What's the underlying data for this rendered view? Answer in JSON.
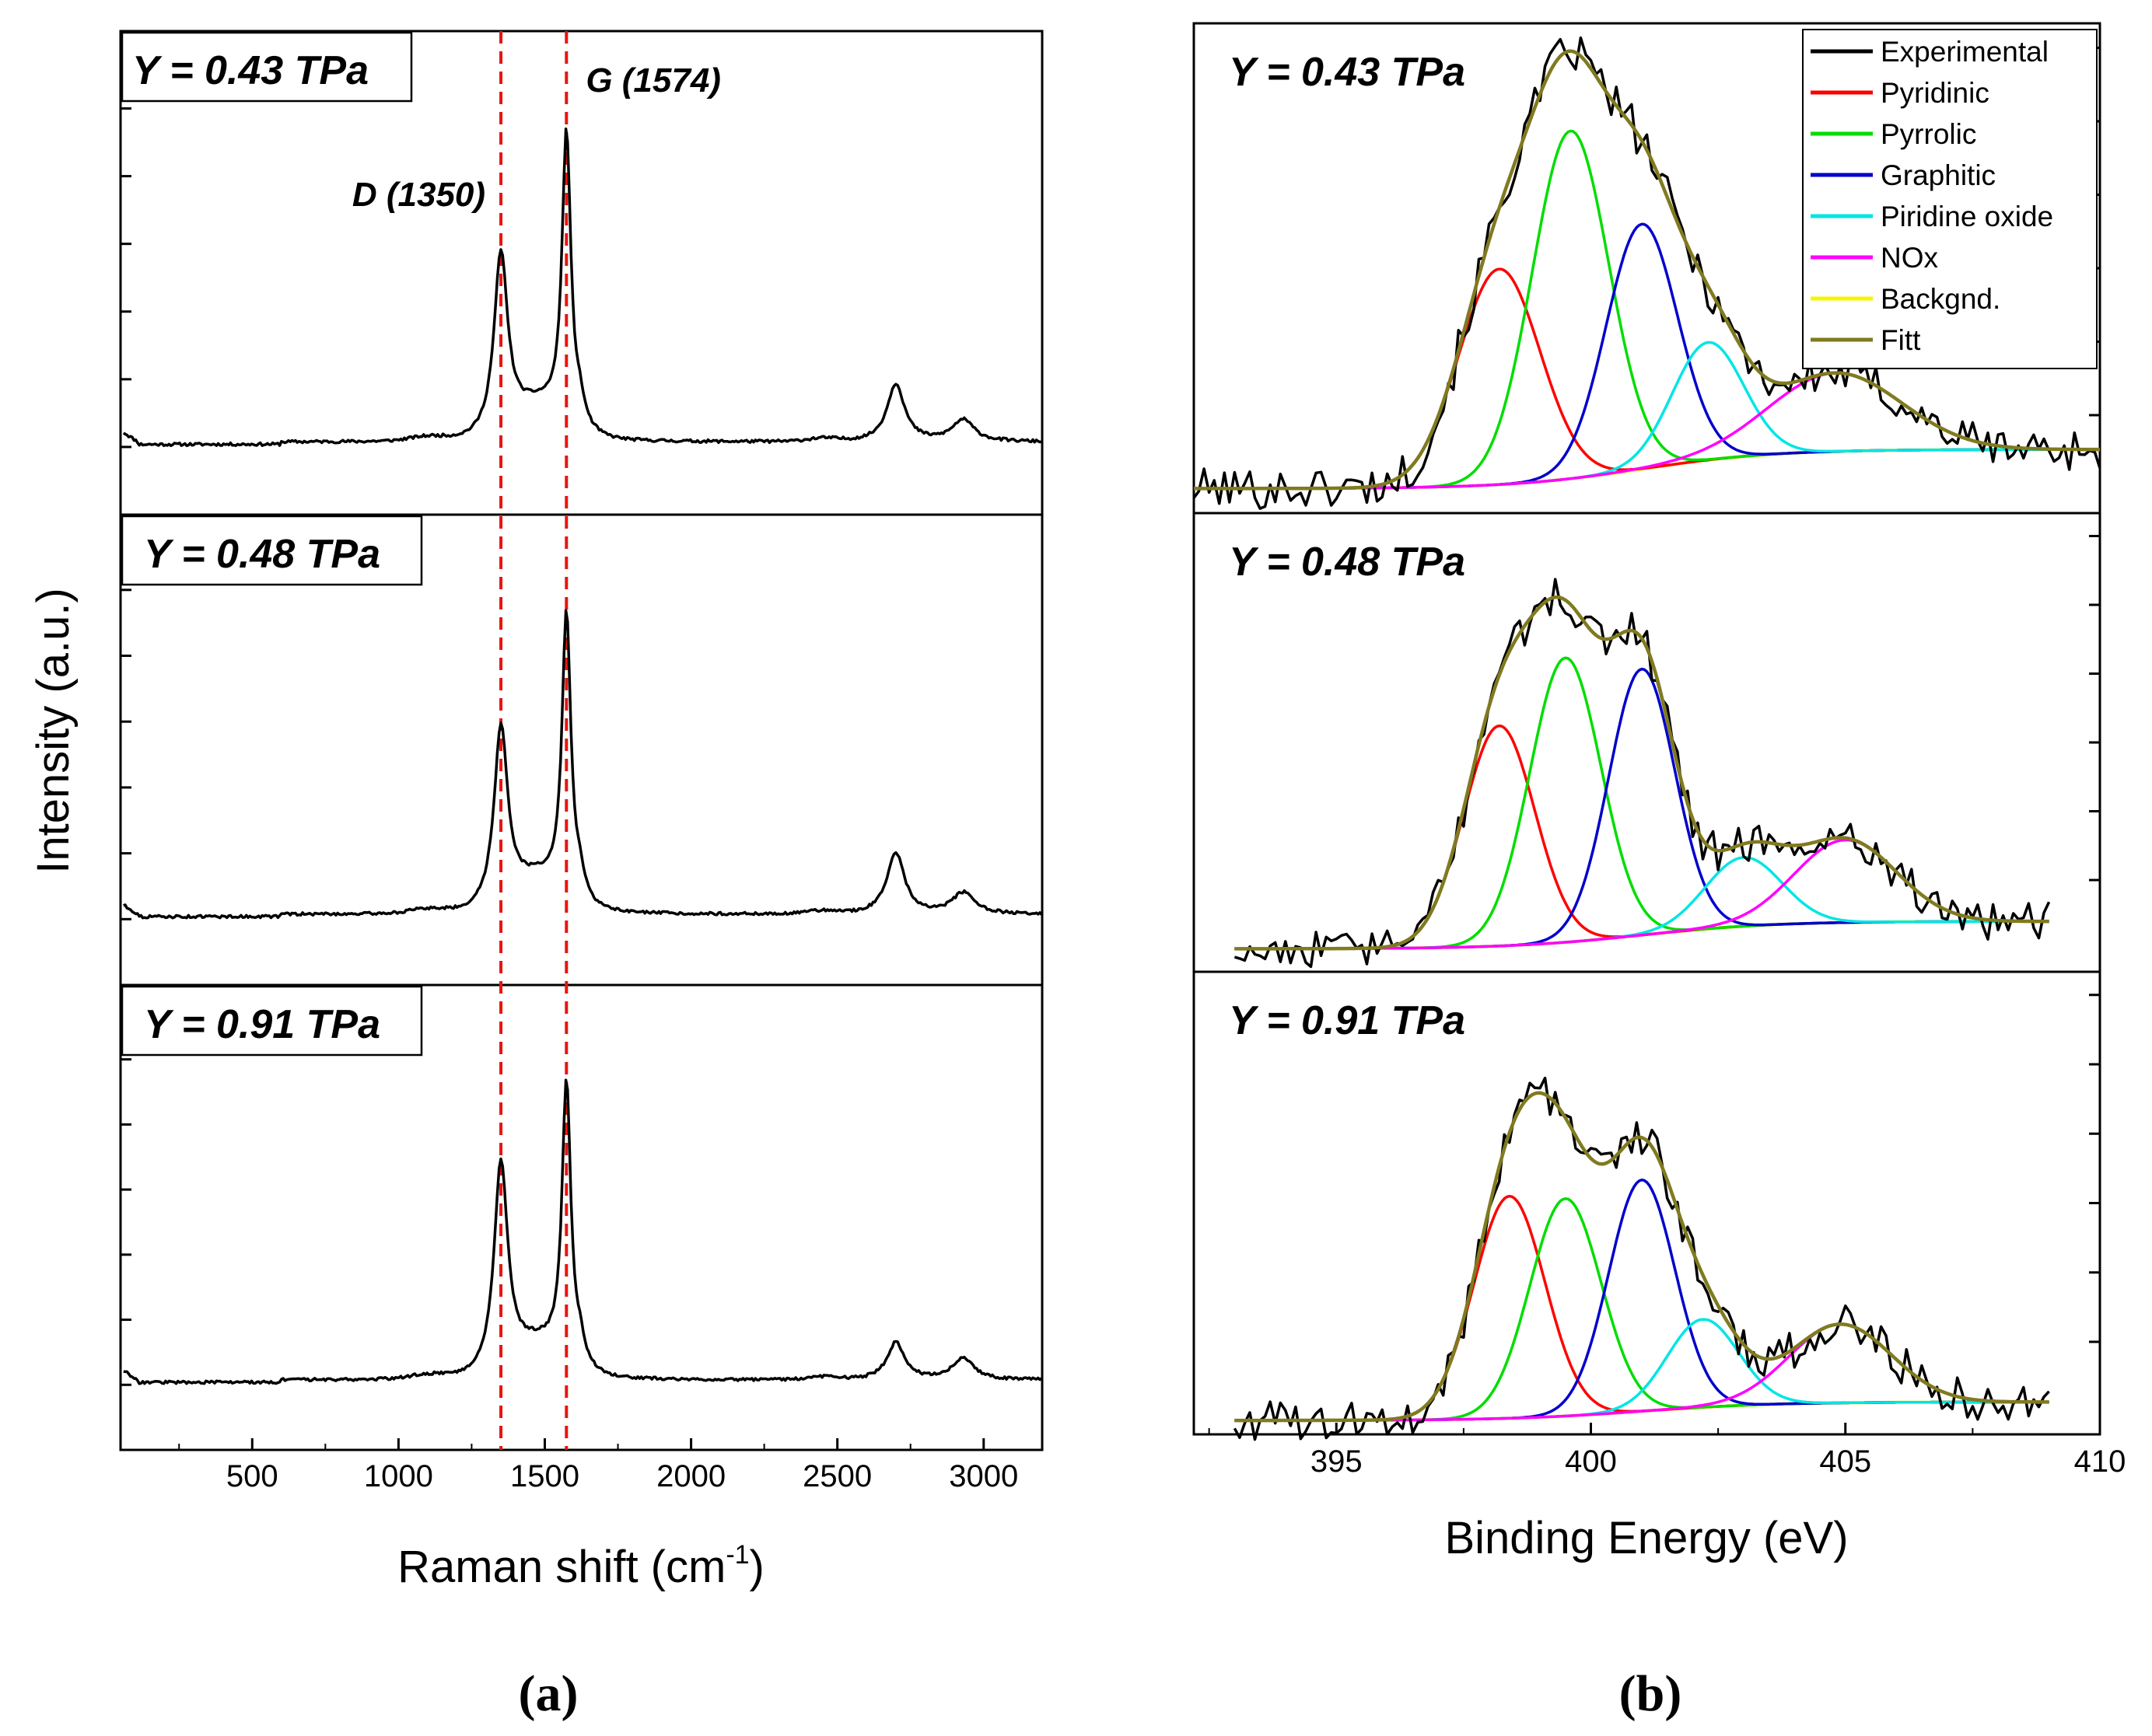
{
  "chart_data": [
    {
      "id": "a",
      "type": "line",
      "title": "",
      "subplot_label": "(a)",
      "xlabel": "Raman shift (cm",
      "xlabel_sup": "-1",
      "xlabel_close": ")",
      "ylabel": "Intensity (a.u.)",
      "xlim": [
        50,
        3200
      ],
      "ylim": [
        0,
        1
      ],
      "xticks": [
        500,
        1000,
        1500,
        2000,
        2500,
        3000
      ],
      "xtick_labels": [
        "500",
        "1000",
        "1500",
        "2000",
        "2500",
        "3000"
      ],
      "reference_lines": [
        1350,
        1574
      ],
      "reference_color": "#e8140f",
      "annotations": [
        {
          "text": "D (1350)",
          "x": 1350,
          "panel": 0
        },
        {
          "text": "G (1574)",
          "x": 1574,
          "panel": 0
        }
      ],
      "panels": [
        {
          "label": "Y = 0.43 TPa",
          "D_height": 0.52,
          "G_height": 0.75,
          "2D_height": 0.27,
          "baseline": 0.15
        },
        {
          "label": "Y = 0.48 TPa",
          "D_height": 0.53,
          "G_height": 0.75,
          "2D_height": 0.28,
          "baseline": 0.15
        },
        {
          "label": "Y = 0.91 TPa",
          "D_height": 0.6,
          "G_height": 0.75,
          "2D_height": 0.23,
          "baseline": 0.15
        }
      ],
      "peaks": {
        "D": 1350,
        "G": 1574,
        "2D": 2700,
        "D+G": 2930
      },
      "line_color": "#000000"
    },
    {
      "id": "b",
      "type": "line",
      "title": "",
      "subplot_label": "(b)",
      "xlabel": "Binding Energy (eV)",
      "ylabel": "",
      "xlim": [
        392.2,
        410
      ],
      "ylim": [
        0,
        1
      ],
      "xticks": [
        395,
        400,
        405,
        410
      ],
      "xtick_labels": [
        "395",
        "400",
        "405",
        "410"
      ],
      "legend": {
        "position": "top-right",
        "entries": [
          {
            "name": "Experimental",
            "color": "#000000"
          },
          {
            "name": "Pyridinic",
            "color": "#ff0000"
          },
          {
            "name": "Pyrrolic",
            "color": "#00dd00"
          },
          {
            "name": "Graphitic",
            "color": "#0000cc"
          },
          {
            "name": "Piridine oxide",
            "color": "#00e5e5"
          },
          {
            "name": "NOx",
            "color": "#ff00ff"
          },
          {
            "name": "Backgnd.",
            "color": "#f5f500"
          },
          {
            "name": "Fitt",
            "color": "#807a20"
          }
        ]
      },
      "panels": [
        {
          "label": "Y = 0.43 TPa",
          "x_range": [
            392.2,
            410
          ],
          "background": [
            0.05,
            0.13
          ],
          "components": [
            {
              "name": "Pyridinic",
              "center": 398.2,
              "height": 0.44,
              "sigma": 0.8
            },
            {
              "name": "Pyrrolic",
              "center": 399.6,
              "height": 0.71,
              "sigma": 0.75
            },
            {
              "name": "Graphitic",
              "center": 401.0,
              "height": 0.5,
              "sigma": 0.7
            },
            {
              "name": "Piridine oxide",
              "center": 402.3,
              "height": 0.24,
              "sigma": 0.7
            },
            {
              "name": "NOx",
              "center": 404.8,
              "height": 0.16,
              "sigma": 1.3
            }
          ]
        },
        {
          "label": "Y = 0.48 TPa",
          "x_range": [
            393,
            409
          ],
          "background": [
            0.05,
            0.11
          ],
          "components": [
            {
              "name": "Pyridinic",
              "center": 398.2,
              "height": 0.48,
              "sigma": 0.7
            },
            {
              "name": "Pyrrolic",
              "center": 399.5,
              "height": 0.62,
              "sigma": 0.7
            },
            {
              "name": "Graphitic",
              "center": 401.0,
              "height": 0.58,
              "sigma": 0.65
            },
            {
              "name": "Piridine oxide",
              "center": 403.0,
              "height": 0.15,
              "sigma": 0.75
            },
            {
              "name": "NOx",
              "center": 405.0,
              "height": 0.18,
              "sigma": 1.0
            }
          ]
        },
        {
          "label": "Y = 0.91 TPa",
          "x_range": [
            393,
            409
          ],
          "background": [
            0.03,
            0.07
          ],
          "components": [
            {
              "name": "Pyridinic",
              "center": 398.4,
              "height": 0.48,
              "sigma": 0.7
            },
            {
              "name": "Pyrrolic",
              "center": 399.5,
              "height": 0.47,
              "sigma": 0.7
            },
            {
              "name": "Graphitic",
              "center": 401.0,
              "height": 0.5,
              "sigma": 0.65
            },
            {
              "name": "Piridine oxide",
              "center": 402.2,
              "height": 0.19,
              "sigma": 0.7
            },
            {
              "name": "NOx",
              "center": 404.9,
              "height": 0.17,
              "sigma": 1.0
            }
          ]
        }
      ]
    }
  ]
}
